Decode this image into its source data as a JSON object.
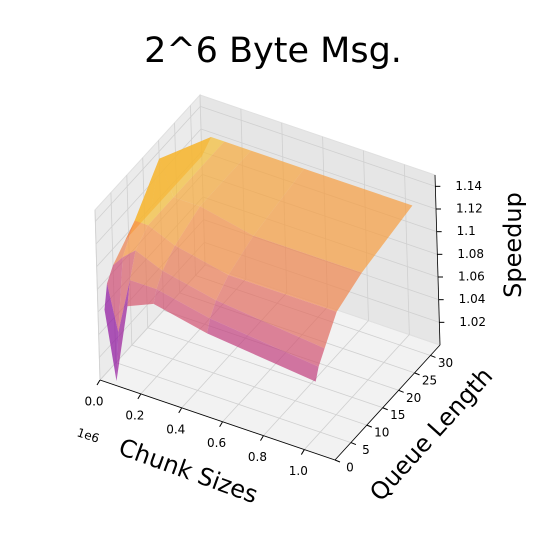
{
  "chart_data": {
    "type": "surface",
    "title": "2^6 Byte Msg.",
    "xlabel": "Chunk Sizes",
    "ylabel": "Queue Length",
    "zlabel": "Speedup",
    "x_offset_label": "1e6",
    "colormap": "plasma",
    "x": [
      0.016,
      0.065,
      0.13,
      0.26,
      0.52,
      1.05
    ],
    "y": [
      1,
      2,
      4,
      8,
      16,
      32
    ],
    "z": [
      [
        1.06,
        1.0,
        1.07,
        1.08,
        1.07,
        1.06
      ],
      [
        1.08,
        1.04,
        1.09,
        1.09,
        1.08,
        1.07
      ],
      [
        1.09,
        1.1,
        1.11,
        1.1,
        1.09,
        1.08
      ],
      [
        1.1,
        1.12,
        1.12,
        1.11,
        1.1,
        1.1
      ],
      [
        1.1,
        1.15,
        1.12,
        1.12,
        1.11,
        1.11
      ],
      [
        1.1,
        1.12,
        1.12,
        1.12,
        1.12,
        1.12
      ]
    ],
    "xlim": [
      0,
      1.15
    ],
    "ylim": [
      0,
      33
    ],
    "zlim": [
      1.0,
      1.15
    ],
    "xticks": [
      {
        "value": 0,
        "label": "0.0"
      },
      0.2,
      0.4,
      0.6,
      0.8,
      {
        "value": 1,
        "label": "1.0"
      }
    ],
    "yticks": [
      0,
      5,
      10,
      15,
      20,
      25,
      30
    ],
    "zticks": [
      1.02,
      1.04,
      1.06,
      1.08,
      1.1,
      1.12,
      1.14
    ],
    "grid": true
  }
}
